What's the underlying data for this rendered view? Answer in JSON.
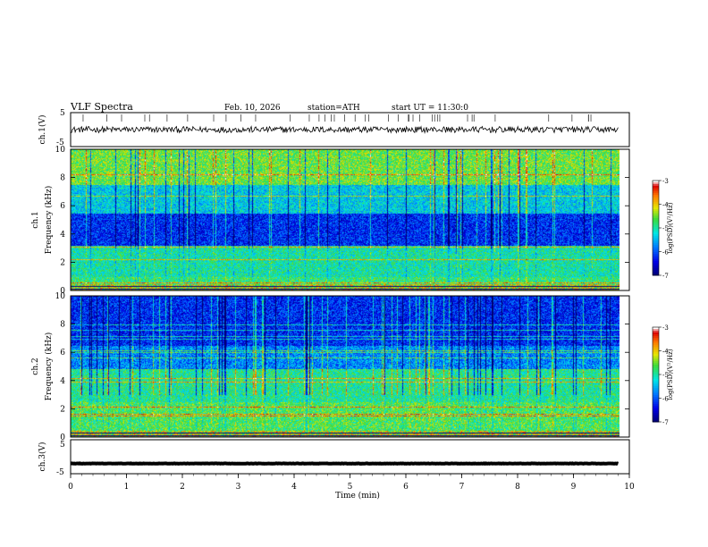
{
  "header": {
    "title": "VLF  Spectra",
    "date": "Feb. 10, 2026",
    "station": "station=ATH",
    "start": "start  UT  =   11:30:0"
  },
  "chart_data": [
    {
      "type": "line",
      "panel": "ch1-waveform",
      "ylabel": "ch.1(V)",
      "xlim": [
        0,
        10
      ],
      "ylim": [
        -5,
        5
      ],
      "y_ticks": [
        "5",
        "-5"
      ],
      "series": [
        {
          "level": 0.0,
          "noise": 0.9,
          "color": "#000000"
        }
      ]
    },
    {
      "type": "heatmap",
      "panel": "ch1-spectrogram",
      "ylabel": "ch.1\nFrequency (kHz)",
      "xlim": [
        0,
        10
      ],
      "ylim": [
        0,
        10
      ],
      "y_ticks": [
        "0",
        "2",
        "4",
        "6",
        "8",
        "10"
      ],
      "data_end_min": 9.8,
      "colorbar": {
        "label": "log(PSD)(V²/Hz)",
        "range": [
          -7,
          -3
        ],
        "ticks": [
          "-3",
          "-4",
          "-5",
          "-6",
          "-7"
        ]
      }
    },
    {
      "type": "heatmap",
      "panel": "ch2-spectrogram",
      "ylabel": "ch.2\nFrequency (kHz)",
      "xlim": [
        0,
        10
      ],
      "ylim": [
        0,
        10
      ],
      "y_ticks": [
        "0",
        "2",
        "4",
        "6",
        "8",
        "10"
      ],
      "data_end_min": 9.8,
      "colorbar": {
        "label": "log(PSD)(V²/Hz)",
        "range": [
          -7,
          -3
        ],
        "ticks": [
          "-3",
          "-4",
          "-5",
          "-6",
          "-7"
        ]
      }
    },
    {
      "type": "line",
      "panel": "ch3-waveform",
      "ylabel": "ch.3(V)",
      "xlim": [
        0,
        10
      ],
      "ylim": [
        -5,
        5
      ],
      "y_ticks": [
        "5",
        "0",
        "-5"
      ],
      "series": [
        {
          "level": -2.0,
          "noise": 0.05,
          "color": "#000000"
        }
      ]
    }
  ],
  "x_axis": {
    "label": "Time  (min)",
    "ticks": [
      "0",
      "1",
      "2",
      "3",
      "4",
      "5",
      "6",
      "7",
      "8",
      "9",
      "10"
    ]
  }
}
